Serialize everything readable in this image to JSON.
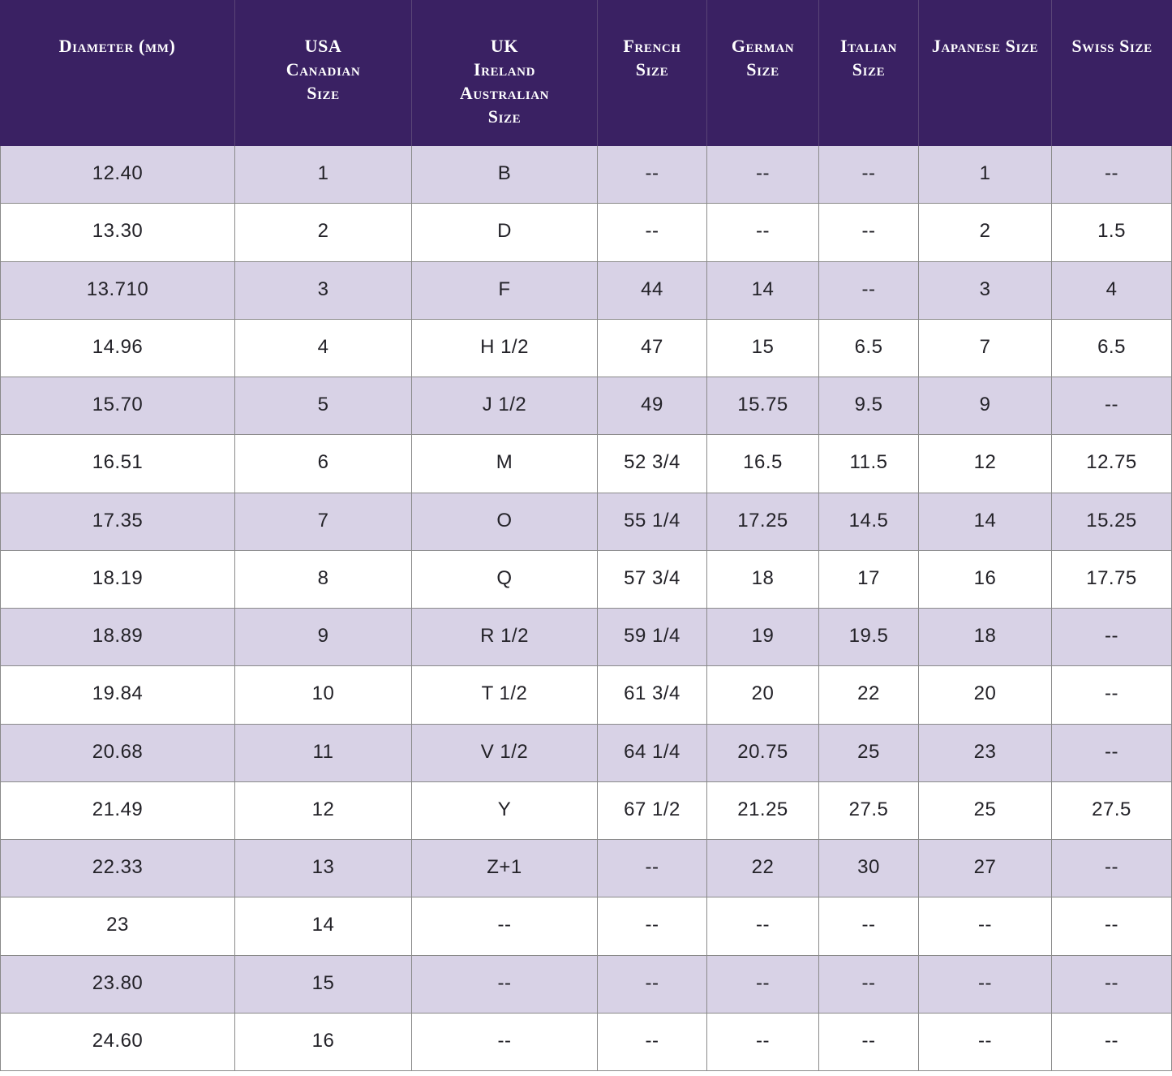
{
  "colors": {
    "header_bg": "#3a2163",
    "header_text": "#ffffff",
    "header_divider": "#5a4577",
    "row_alt_bg": "#d8d2e6",
    "row_bg": "#ffffff",
    "border": "#8a8a8a",
    "text": "#232228"
  },
  "chart_data": {
    "type": "table",
    "columns": [
      "Diameter (mm)",
      "USA\nCanadian\nSize",
      "UK\nIreland\nAustralian\nSize",
      "French\nSize",
      "German\nSize",
      "Italian\nSize",
      "Japanese Size",
      "Swiss Size"
    ],
    "rows": [
      [
        "12.40",
        "1",
        "B",
        "--",
        "--",
        "--",
        "1",
        "--"
      ],
      [
        "13.30",
        "2",
        "D",
        "--",
        "--",
        "--",
        "2",
        "1.5"
      ],
      [
        "13.710",
        "3",
        "F",
        "44",
        "14",
        "--",
        "3",
        "4"
      ],
      [
        "14.96",
        "4",
        "H 1/2",
        "47",
        "15",
        "6.5",
        "7",
        "6.5"
      ],
      [
        "15.70",
        "5",
        "J 1/2",
        "49",
        "15.75",
        "9.5",
        "9",
        "--"
      ],
      [
        "16.51",
        "6",
        "M",
        "52 3/4",
        "16.5",
        "11.5",
        "12",
        "12.75"
      ],
      [
        "17.35",
        "7",
        "O",
        "55 1/4",
        "17.25",
        "14.5",
        "14",
        "15.25"
      ],
      [
        "18.19",
        "8",
        "Q",
        "57 3/4",
        "18",
        "17",
        "16",
        "17.75"
      ],
      [
        "18.89",
        "9",
        "R 1/2",
        "59 1/4",
        "19",
        "19.5",
        "18",
        "--"
      ],
      [
        "19.84",
        "10",
        "T 1/2",
        "61 3/4",
        "20",
        "22",
        "20",
        "--"
      ],
      [
        "20.68",
        "11",
        "V 1/2",
        "64 1/4",
        "20.75",
        "25",
        "23",
        "--"
      ],
      [
        "21.49",
        "12",
        "Y",
        "67 1/2",
        "21.25",
        "27.5",
        "25",
        "27.5"
      ],
      [
        "22.33",
        "13",
        "Z+1",
        "--",
        "22",
        "30",
        "27",
        "--"
      ],
      [
        "23",
        "14",
        "--",
        "--",
        "--",
        "--",
        "--",
        "--"
      ],
      [
        "23.80",
        "15",
        "--",
        "--",
        "--",
        "--",
        "--",
        "--"
      ],
      [
        "24.60",
        "16",
        "--",
        "--",
        "--",
        "--",
        "--",
        "--"
      ]
    ]
  }
}
